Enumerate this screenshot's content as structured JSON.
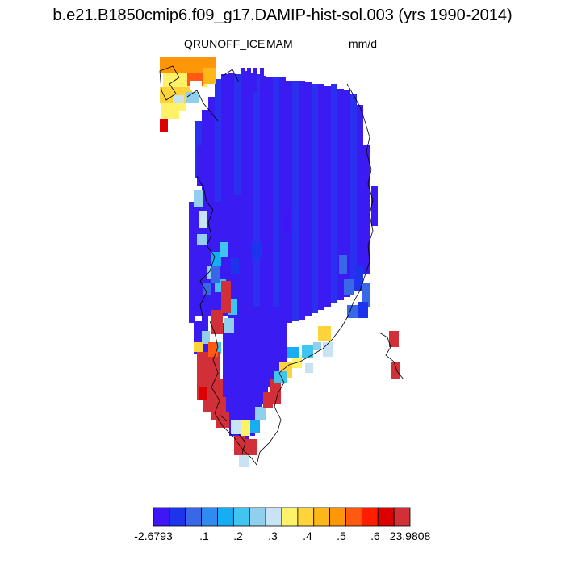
{
  "title": "b.e21.B1850cmip6.f09_g17.DAMIP-hist-sol.003 (yrs 1990-2014)",
  "variable": "QRUNOFF_ICE",
  "season": "MAM",
  "units": "mm/d",
  "colorbar": {
    "colors": [
      "#3f16f5",
      "#1b34ec",
      "#3868e8",
      "#2f8bf0",
      "#15aef5",
      "#40c4f0",
      "#90cfee",
      "#c8e4f4",
      "#fff268",
      "#fed43a",
      "#fcb718",
      "#fd9608",
      "#ff5a10",
      "#ff1f00",
      "#dd0000",
      "#d13038"
    ],
    "labels": [
      "-2.6793",
      ".1",
      ".2",
      ".3",
      ".4",
      ".5",
      ".6",
      "23.9808"
    ]
  },
  "colors": {
    "interior": "#3a1cf3",
    "interior_alt": "#2b2ff0",
    "coast_line": "#000000"
  }
}
